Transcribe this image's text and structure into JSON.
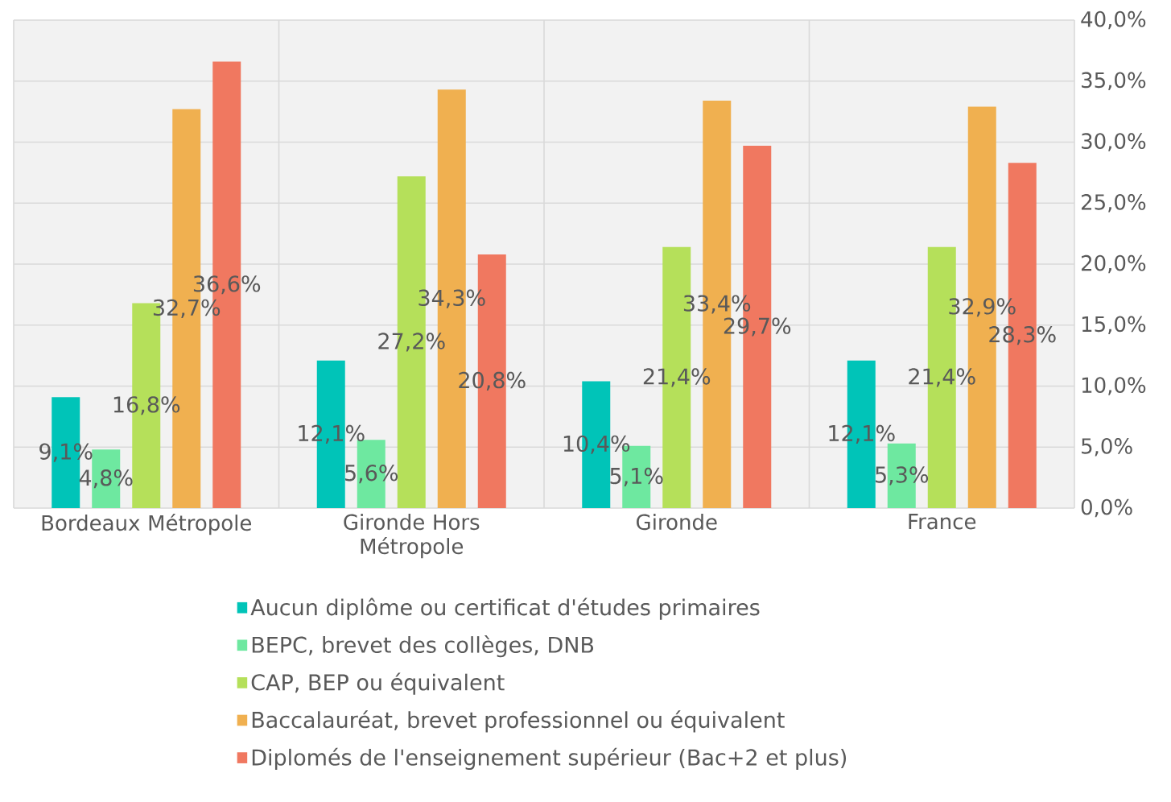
{
  "chart_data": {
    "type": "bar",
    "categories": [
      "Bordeaux Métropole",
      "Gironde Hors Métropole",
      "Gironde",
      "France"
    ],
    "series": [
      {
        "name": "Aucun diplôme ou certificat d'études primaires",
        "color": "#00c4b8",
        "values": [
          9.1,
          12.1,
          10.4,
          12.1
        ],
        "value_labels": [
          "9,1%",
          "12,1%",
          "10,4%",
          "12,1%"
        ]
      },
      {
        "name": "BEPC, brevet des collèges, DNB",
        "color": "#6ee8a0",
        "values": [
          4.8,
          5.6,
          5.1,
          5.3
        ],
        "value_labels": [
          "4,8%",
          "5,6%",
          "5,1%",
          "5,3%"
        ]
      },
      {
        "name": "CAP, BEP ou équivalent",
        "color": "#b5e05a",
        "values": [
          16.8,
          27.2,
          21.4,
          21.4
        ],
        "value_labels": [
          "16,8%",
          "27,2%",
          "21,4%",
          "21,4%"
        ]
      },
      {
        "name": "Baccalauréat, brevet professionnel ou équivalent",
        "color": "#f0b050",
        "values": [
          32.7,
          34.3,
          33.4,
          32.9
        ],
        "value_labels": [
          "32,7%",
          "34,3%",
          "33,4%",
          "32,9%"
        ]
      },
      {
        "name": "Diplomés de l'enseignement supérieur (Bac+2 et plus)",
        "color": "#f07860",
        "values": [
          36.6,
          20.8,
          29.7,
          28.3
        ],
        "value_labels": [
          "36,6%",
          "20,8%",
          "29,7%",
          "28,3%"
        ]
      }
    ],
    "ylim": [
      0,
      40
    ],
    "yticks": [
      {
        "value": 0,
        "label": "0,0%"
      },
      {
        "value": 5,
        "label": "5,0%"
      },
      {
        "value": 10,
        "label": "10,0%"
      },
      {
        "value": 15,
        "label": "15,0%"
      },
      {
        "value": 20,
        "label": "20,0%"
      },
      {
        "value": 25,
        "label": "25,0%"
      },
      {
        "value": 30,
        "label": "30,0%"
      },
      {
        "value": 35,
        "label": "35,0%"
      },
      {
        "value": 40,
        "label": "40,0%"
      }
    ],
    "grid": true,
    "legend": "bottom"
  }
}
